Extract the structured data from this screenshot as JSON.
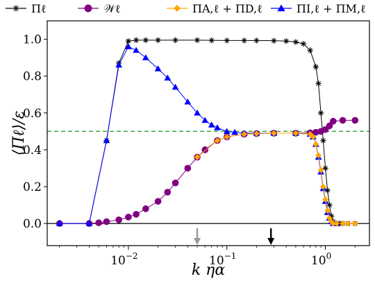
{
  "chart_data": {
    "type": "line",
    "xscale": "log",
    "xlabel": "k ηα",
    "ylabel": "⟨Πℓ⟩/ε",
    "xlim": [
      0.0015,
      2.8
    ],
    "ylim": [
      -0.12,
      1.1
    ],
    "x_tick_labels": [
      {
        "value": 0.01,
        "base": "10",
        "exp": "−2"
      },
      {
        "value": 0.1,
        "base": "10",
        "exp": "−1"
      },
      {
        "value": 1,
        "base": "10",
        "exp": "0"
      }
    ],
    "y_tick_labels": [
      "0.0",
      "0.2",
      "0.4",
      "0.6",
      "0.8",
      "1.0"
    ],
    "y_ticks": [
      0.0,
      0.2,
      0.4,
      0.6,
      0.8,
      1.0
    ],
    "reference_lines": [
      {
        "y": 0.5,
        "color": "#2ca02c",
        "style": "dashed"
      },
      {
        "y": 0.0,
        "color": "#000000",
        "style": "solid"
      }
    ],
    "arrows": [
      {
        "x": 0.05,
        "color": "#999999"
      },
      {
        "x": 0.28,
        "color": "#000000"
      }
    ],
    "legend_placement": "top (above plot)",
    "series": [
      {
        "name": "Πℓ",
        "color": "#000000",
        "marker": "star",
        "x": [
          0.002,
          0.004,
          0.006,
          0.008,
          0.01,
          0.012,
          0.015,
          0.02,
          0.03,
          0.05,
          0.07,
          0.1,
          0.15,
          0.2,
          0.3,
          0.4,
          0.5,
          0.6,
          0.7,
          0.8,
          0.85,
          0.9,
          0.95,
          1.0,
          1.05,
          1.1,
          1.15,
          1.2,
          1.3,
          1.4,
          1.5,
          1.7,
          2.0
        ],
        "y": [
          0.0,
          0.0,
          0.45,
          0.87,
          0.99,
          0.995,
          0.995,
          0.995,
          0.995,
          0.995,
          0.994,
          0.993,
          0.993,
          0.993,
          0.992,
          0.99,
          0.985,
          0.975,
          0.94,
          0.85,
          0.76,
          0.6,
          0.45,
          0.3,
          0.18,
          0.1,
          0.04,
          0.01,
          0.0,
          0.0,
          0.0,
          0.0,
          0.0
        ]
      },
      {
        "name": "𝒲ℓ",
        "color": "#800080",
        "marker": "circle",
        "x": [
          0.002,
          0.004,
          0.005,
          0.006,
          0.008,
          0.01,
          0.012,
          0.015,
          0.02,
          0.025,
          0.03,
          0.04,
          0.05,
          0.06,
          0.08,
          0.1,
          0.15,
          0.2,
          0.3,
          0.5,
          0.7,
          0.8,
          0.9,
          1.0,
          1.1,
          1.2,
          1.5,
          2.0
        ],
        "y": [
          0.0,
          0.0,
          0.004,
          0.01,
          0.02,
          0.035,
          0.05,
          0.08,
          0.12,
          0.17,
          0.22,
          0.3,
          0.36,
          0.4,
          0.45,
          0.47,
          0.485,
          0.488,
          0.49,
          0.49,
          0.492,
          0.495,
          0.5,
          0.51,
          0.53,
          0.555,
          0.56,
          0.56
        ]
      },
      {
        "name": "ΠA,ℓ + ΠD,ℓ",
        "color": "#ffa500",
        "marker": "diamond",
        "x": [
          0.05,
          0.08,
          0.1,
          0.15,
          0.2,
          0.3,
          0.5,
          0.7,
          0.75,
          0.8,
          0.85,
          0.9,
          0.95,
          1.0,
          1.05,
          1.1,
          1.15,
          1.2,
          1.3,
          1.5,
          1.7,
          2.0
        ],
        "y": [
          0.36,
          0.45,
          0.47,
          0.485,
          0.488,
          0.49,
          0.49,
          0.485,
          0.47,
          0.43,
          0.37,
          0.29,
          0.2,
          0.13,
          0.07,
          0.03,
          0.01,
          0.0,
          0.0,
          0.0,
          0.0,
          0.0
        ]
      },
      {
        "name": "ΠI,ℓ + ΠM,ℓ",
        "color": "#0000ff",
        "marker": "triangle",
        "x": [
          0.002,
          0.004,
          0.006,
          0.008,
          0.01,
          0.012,
          0.015,
          0.02,
          0.025,
          0.03,
          0.04,
          0.05,
          0.06,
          0.07,
          0.08,
          0.1,
          0.12,
          0.15,
          0.2,
          0.3,
          0.5,
          0.7,
          0.75,
          0.8,
          0.85,
          0.9,
          0.95,
          1.0,
          1.05,
          1.1,
          1.15,
          1.2,
          1.3
        ],
        "y": [
          0.0,
          0.0,
          0.45,
          0.86,
          0.96,
          0.94,
          0.9,
          0.84,
          0.79,
          0.74,
          0.66,
          0.6,
          0.56,
          0.535,
          0.52,
          0.5,
          0.495,
          0.49,
          0.49,
          0.49,
          0.49,
          0.485,
          0.47,
          0.43,
          0.36,
          0.28,
          0.19,
          0.12,
          0.06,
          0.03,
          0.01,
          0.0,
          0.0
        ]
      }
    ]
  }
}
